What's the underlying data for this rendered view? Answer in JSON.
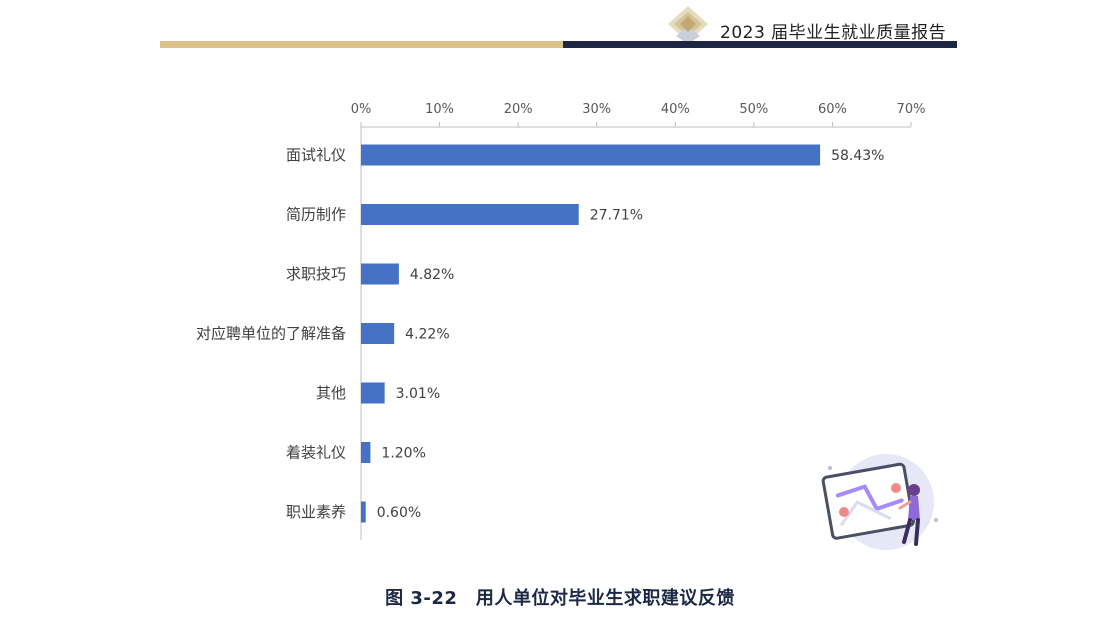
{
  "header": {
    "title": "2023 届毕业生就业质量报告"
  },
  "colors": {
    "gold": "#dcc188",
    "navy": "#1c2745",
    "bar": "#4472c4"
  },
  "chart_data": {
    "type": "bar",
    "orientation": "horizontal",
    "categories": [
      "面试礼仪",
      "简历制作",
      "求职技巧",
      "对应聘单位的了解准备",
      "其他",
      "着装礼仪",
      "职业素养"
    ],
    "values": [
      58.43,
      27.71,
      4.82,
      4.22,
      3.01,
      1.2,
      0.6
    ],
    "value_labels": [
      "58.43%",
      "27.71%",
      "4.82%",
      "4.22%",
      "3.01%",
      "1.20%",
      "0.60%"
    ],
    "x_ticks": [
      "0%",
      "10%",
      "20%",
      "30%",
      "40%",
      "50%",
      "60%",
      "70%"
    ],
    "xlim": [
      0,
      70
    ],
    "x_axis_position": "top",
    "grid": false,
    "legend": "none"
  },
  "caption": "图 3-22　用人单位对毕业生求职建议反馈"
}
